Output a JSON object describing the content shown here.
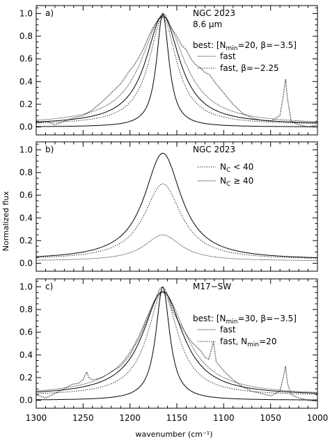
{
  "figure": {
    "ylabel": "Normalized flux",
    "xlabel": "wavenumber (cm⁻¹)",
    "x_ticks": [
      "1300",
      "1250",
      "1200",
      "1150",
      "1100",
      "1050",
      "1000"
    ],
    "y_ticks": [
      "0.0",
      "0.2",
      "0.4",
      "0.6",
      "0.8",
      "1.0"
    ]
  },
  "chart_data": [
    {
      "type": "line",
      "panel": "a)",
      "annotations": [
        "NGC 2023",
        "8.6 μm"
      ],
      "legend": {
        "header": {
          "prefix": "best: [N",
          "sub1": "min",
          "mid": "=20, β=−3.5]"
        },
        "entries": [
          {
            "text": "fast",
            "style": "dotted-fine"
          },
          {
            "text": "fast, β=−2.25",
            "style": "dotted"
          }
        ]
      },
      "xlim": [
        1300,
        1000
      ],
      "ylim": [
        -0.07,
        1.07
      ],
      "series": [
        {
          "style": "observed-points",
          "x": [
            1300,
            1290,
            1280,
            1270,
            1260,
            1250,
            1240,
            1230,
            1220,
            1210,
            1200,
            1195,
            1190,
            1185,
            1180,
            1175,
            1170,
            1168,
            1166,
            1164,
            1162,
            1160,
            1158,
            1155,
            1150,
            1145,
            1140,
            1135,
            1130,
            1125,
            1120,
            1115,
            1110,
            1100,
            1090,
            1080,
            1070,
            1060,
            1050,
            1040,
            1036,
            1034,
            1032,
            1028,
            1020,
            1010,
            1000
          ],
          "y": [
            0.03,
            0.05,
            0.02,
            0.05,
            0.08,
            0.1,
            0.15,
            0.22,
            0.3,
            0.38,
            0.5,
            0.55,
            0.62,
            0.7,
            0.8,
            0.88,
            0.95,
            0.97,
            0.99,
            1.0,
            0.98,
            0.95,
            0.9,
            0.86,
            0.8,
            0.72,
            0.68,
            0.6,
            0.55,
            0.52,
            0.48,
            0.46,
            0.4,
            0.3,
            0.2,
            0.12,
            0.08,
            0.06,
            0.05,
            0.1,
            0.3,
            0.42,
            0.25,
            0.05,
            0.02,
            0.0,
            0.02
          ]
        },
        {
          "style": "solid",
          "kind": "lorentzian",
          "center": 1165,
          "hwhm": 8,
          "peak": 1.0,
          "base": 0.0
        },
        {
          "style": "solid",
          "kind": "lorentzian",
          "center": 1165,
          "hwhm": 22,
          "peak": 0.98,
          "base": 0.02
        },
        {
          "style": "dotted-fine",
          "kind": "lorentzian",
          "center": 1165,
          "hwhm": 28,
          "peak": 0.97,
          "base": 0.02
        },
        {
          "style": "dotted",
          "kind": "lorentzian",
          "center": 1165,
          "hwhm": 18,
          "peak": 0.96,
          "base": 0.02
        }
      ]
    },
    {
      "type": "line",
      "panel": "b)",
      "annotations": [
        "NGC 2023"
      ],
      "legend": {
        "entries": [
          {
            "pre": "N",
            "sub": "C",
            "op": " < 40",
            "style": "dotted"
          },
          {
            "pre": "N",
            "sub": "C",
            "op": " ≥ 40",
            "style": "dotted-fine"
          }
        ]
      },
      "xlim": [
        1300,
        1000
      ],
      "ylim": [
        -0.07,
        1.07
      ],
      "series": [
        {
          "style": "solid",
          "kind": "lorentzian",
          "center": 1165,
          "hwhm": 24,
          "peak": 0.97,
          "base": 0.03
        },
        {
          "style": "dotted",
          "kind": "lorentzian",
          "center": 1165,
          "hwhm": 24,
          "peak": 0.7,
          "base": 0.03
        },
        {
          "style": "dotted-fine",
          "kind": "lorentzian",
          "center": 1165,
          "hwhm": 24,
          "peak": 0.25,
          "base": 0.02
        }
      ]
    },
    {
      "type": "line",
      "panel": "c)",
      "annotations": [
        "M17−SW"
      ],
      "legend": {
        "header": {
          "prefix": "best: [N",
          "sub1": "min",
          "mid": "=30, β=−3.5]"
        },
        "entries": [
          {
            "text": "fast",
            "style": "dotted-fine"
          },
          {
            "pre": "fast, N",
            "sub": "min",
            "op": "=20",
            "style": "dotted"
          }
        ]
      },
      "xlim": [
        1300,
        1000
      ],
      "ylim": [
        -0.07,
        1.07
      ],
      "series": [
        {
          "style": "observed-points",
          "x": [
            1300,
            1290,
            1280,
            1270,
            1262,
            1255,
            1250,
            1248,
            1246,
            1244,
            1240,
            1230,
            1220,
            1210,
            1200,
            1195,
            1190,
            1185,
            1180,
            1175,
            1170,
            1168,
            1166,
            1164,
            1162,
            1160,
            1158,
            1155,
            1150,
            1145,
            1140,
            1135,
            1130,
            1125,
            1120,
            1116,
            1113,
            1111,
            1108,
            1100,
            1090,
            1080,
            1070,
            1060,
            1050,
            1040,
            1036,
            1034,
            1032,
            1028,
            1020,
            1010,
            1000
          ],
          "y": [
            0.05,
            0.02,
            0.06,
            0.1,
            0.14,
            0.15,
            0.18,
            0.22,
            0.25,
            0.2,
            0.18,
            0.2,
            0.25,
            0.3,
            0.4,
            0.48,
            0.55,
            0.65,
            0.75,
            0.85,
            0.95,
            0.98,
            1.0,
            0.99,
            0.97,
            0.93,
            0.88,
            0.8,
            0.72,
            0.65,
            0.58,
            0.52,
            0.48,
            0.44,
            0.38,
            0.36,
            0.45,
            0.52,
            0.34,
            0.26,
            0.18,
            0.12,
            0.08,
            0.06,
            0.04,
            0.08,
            0.22,
            0.3,
            0.15,
            0.05,
            0.02,
            0.0,
            -0.01
          ]
        },
        {
          "style": "solid",
          "kind": "lorentzian",
          "center": 1165,
          "hwhm": 9,
          "peak": 1.0,
          "base": 0.0
        },
        {
          "style": "solid",
          "kind": "lorentzian",
          "center": 1165,
          "hwhm": 26,
          "peak": 0.96,
          "base": 0.04
        },
        {
          "style": "dotted-fine",
          "kind": "lorentzian",
          "center": 1165,
          "hwhm": 30,
          "peak": 0.95,
          "base": 0.04
        },
        {
          "style": "dotted",
          "kind": "lorentzian",
          "center": 1165,
          "hwhm": 20,
          "peak": 0.95,
          "base": 0.04
        }
      ]
    }
  ]
}
